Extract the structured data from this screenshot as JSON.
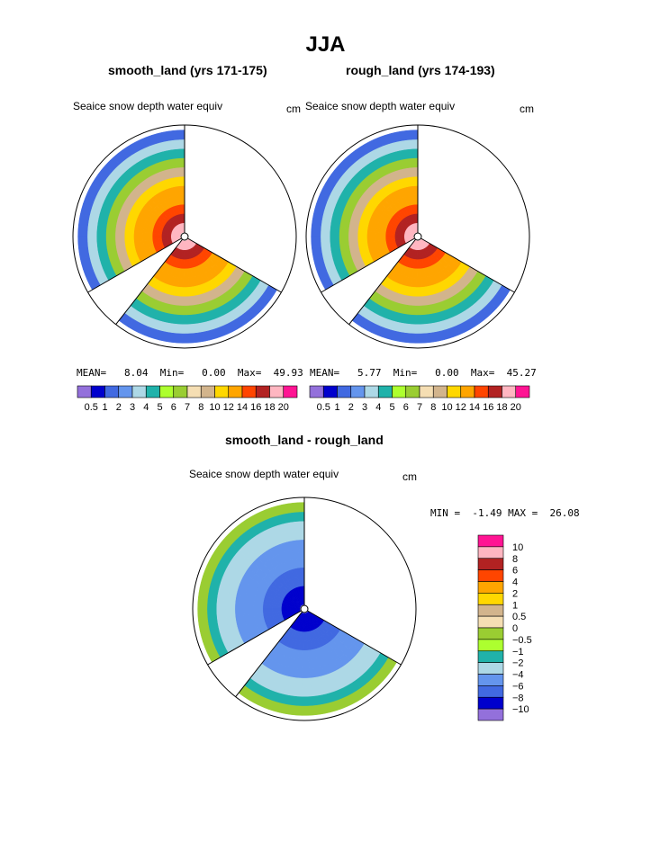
{
  "title": "JJA",
  "panels": [
    {
      "id": "smooth",
      "title": "smooth_land (yrs 171-175)",
      "variable": "Seaice snow depth water equiv",
      "units": "cm",
      "stats": {
        "mean_label": "MEAN=",
        "mean": "8.04",
        "min_label": "Min=",
        "min": "0.00",
        "max_label": "Max=",
        "max": "49.93"
      }
    },
    {
      "id": "rough",
      "title": "rough_land (yrs 174-193)",
      "variable": "Seaice snow depth water equiv",
      "units": "cm",
      "stats": {
        "mean_label": "MEAN=",
        "mean": "5.77",
        "min_label": "Min=",
        "min": "0.00",
        "max_label": "Max=",
        "max": "45.27"
      }
    },
    {
      "id": "diff",
      "title": "smooth_land - rough_land",
      "variable": "Seaice snow depth water equiv",
      "units": "cm",
      "stats": {
        "min_label": "MIN =",
        "min": "-1.49",
        "max_label": "MAX =",
        "max": "26.08"
      }
    }
  ],
  "colorbar_abs": {
    "colors": [
      "#9370db",
      "#0000cd",
      "#4169e1",
      "#6495ed",
      "#add8e6",
      "#20b2aa",
      "#adff2f",
      "#9acd32",
      "#f5deb3",
      "#d2b48c",
      "#ffd700",
      "#ffa500",
      "#ff4500",
      "#b22222",
      "#ffb6c1",
      "#ff1493"
    ],
    "labels": [
      "0.5",
      "1",
      "2",
      "3",
      "4",
      "5",
      "6",
      "7",
      "8",
      "10",
      "12",
      "14",
      "16",
      "18",
      "20"
    ]
  },
  "colorbar_diff": {
    "colors": [
      "#9370db",
      "#0000cd",
      "#4169e1",
      "#6495ed",
      "#add8e6",
      "#20b2aa",
      "#adff2f",
      "#9acd32",
      "#f5deb3",
      "#d2b48c",
      "#ffd700",
      "#ffa500",
      "#ff4500",
      "#b22222",
      "#ffb6c1",
      "#ff1493"
    ],
    "labels": [
      "10",
      "8",
      "6",
      "4",
      "2",
      "1",
      "0.5",
      "0",
      "−0.5",
      "−1",
      "−2",
      "−4",
      "−6",
      "−8",
      "−10"
    ]
  },
  "chart_data": [
    {
      "type": "heatmap",
      "title": "smooth_land (yrs 171-175)",
      "subtitle": "Seaice snow depth water equiv",
      "units": "cm",
      "projection": "polar",
      "mean": 8.04,
      "min": 0.0,
      "max": 49.93,
      "levels": [
        0.5,
        1,
        2,
        3,
        4,
        5,
        6,
        7,
        8,
        10,
        12,
        14,
        16,
        18,
        20
      ],
      "sectors": [
        {
          "from_deg": 90,
          "to_deg": 210,
          "value_inner": 20,
          "value_outer": 0.5
        },
        {
          "from_deg": 232,
          "to_deg": 330,
          "value_inner": 20,
          "value_outer": 0.5
        }
      ]
    },
    {
      "type": "heatmap",
      "title": "rough_land (yrs 174-193)",
      "subtitle": "Seaice snow depth water equiv",
      "units": "cm",
      "projection": "polar",
      "mean": 5.77,
      "min": 0.0,
      "max": 45.27,
      "levels": [
        0.5,
        1,
        2,
        3,
        4,
        5,
        6,
        7,
        8,
        10,
        12,
        14,
        16,
        18,
        20
      ],
      "sectors": [
        {
          "from_deg": 90,
          "to_deg": 210,
          "value_inner": 20,
          "value_outer": 0.5
        },
        {
          "from_deg": 232,
          "to_deg": 330,
          "value_inner": 20,
          "value_outer": 0.5
        }
      ]
    },
    {
      "type": "heatmap",
      "title": "smooth_land - rough_land",
      "subtitle": "Seaice snow depth water equiv",
      "units": "cm",
      "projection": "polar",
      "min": -1.49,
      "max": 26.08,
      "levels": [
        -10,
        -8,
        -6,
        -4,
        -2,
        -1,
        -0.5,
        0,
        0.5,
        1,
        2,
        4,
        6,
        8,
        10
      ],
      "sectors": [
        {
          "from_deg": 90,
          "to_deg": 210,
          "value_inner": 10,
          "value_outer": 0
        },
        {
          "from_deg": 232,
          "to_deg": 330,
          "value_inner": 10,
          "value_outer": 0
        }
      ]
    }
  ]
}
